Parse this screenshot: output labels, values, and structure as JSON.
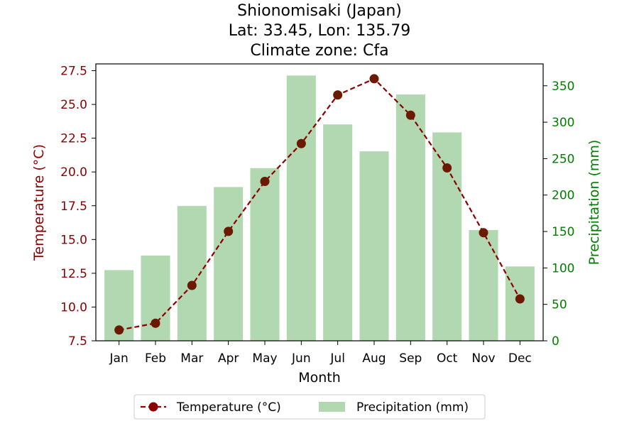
{
  "chart_data": {
    "type": "bar+line",
    "title_lines": [
      "Shionomisaki (Japan)",
      "Lat: 33.45, Lon: 135.79",
      "Climate zone: Cfa"
    ],
    "xlabel": "Month",
    "ylabel_left": "Temperature (°C)",
    "ylabel_right": "Precipitation (mm)",
    "categories": [
      "Jan",
      "Feb",
      "Mar",
      "Apr",
      "May",
      "Jun",
      "Jul",
      "Aug",
      "Sep",
      "Oct",
      "Nov",
      "Dec"
    ],
    "temperature": {
      "name": "Temperature (°C)",
      "color": "#8b0000",
      "values": [
        8.3,
        8.8,
        11.6,
        15.6,
        19.3,
        22.1,
        25.7,
        26.9,
        24.2,
        20.3,
        15.5,
        10.6
      ]
    },
    "precipitation": {
      "name": "Precipitation (mm)",
      "color": "#b2d8b2",
      "values": [
        97,
        117,
        185,
        211,
        237,
        364,
        297,
        260,
        338,
        286,
        152,
        102
      ]
    },
    "ylim_left": [
      7.5,
      28.0
    ],
    "yticks_left": [
      "7.5",
      "10.0",
      "12.5",
      "15.0",
      "17.5",
      "20.0",
      "22.5",
      "25.0",
      "27.5"
    ],
    "ylim_right": [
      0,
      380
    ],
    "yticks_right": [
      "0",
      "50",
      "100",
      "150",
      "200",
      "250",
      "300",
      "350"
    ],
    "left_axis_color": "#8b0000",
    "right_axis_color": "#008000",
    "grid": false,
    "legend_position": "bottom-center"
  }
}
